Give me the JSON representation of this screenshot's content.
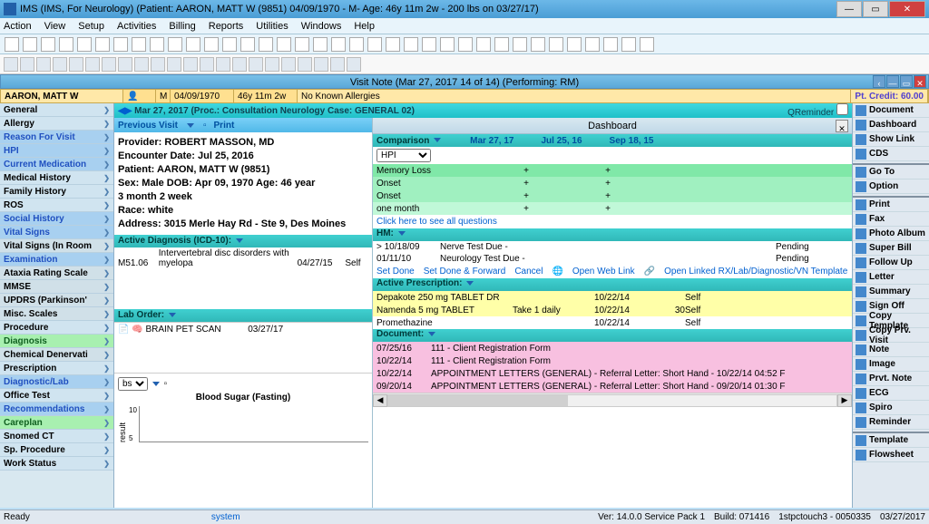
{
  "titlebar": {
    "text": "IMS (IMS, For Neurology)    (Patient: AARON, MATT W (9851) 04/09/1970 - M- Age: 46y 11m 2w - 200 lbs on 03/27/17)"
  },
  "menu": [
    "Action",
    "View",
    "Setup",
    "Activities",
    "Billing",
    "Reports",
    "Utilities",
    "Windows",
    "Help"
  ],
  "visit_header": "Visit Note (Mar 27, 2017   14 of 14) (Performing: RM)",
  "patient_bar": {
    "name": "AARON, MATT W",
    "sex": "M",
    "dob": "04/09/1970",
    "age": "46y 11m 2w",
    "allergy": "No Known Allergies",
    "credit": "Pt. Credit: 60.00"
  },
  "nav": [
    {
      "label": "General",
      "cls": "nav-normal"
    },
    {
      "label": "Allergy",
      "cls": "nav-normal"
    },
    {
      "label": "Reason For Visit",
      "cls": "nav-blue"
    },
    {
      "label": "HPI",
      "cls": "nav-blue"
    },
    {
      "label": "Current Medication",
      "cls": "nav-blue"
    },
    {
      "label": "Medical History",
      "cls": "nav-normal"
    },
    {
      "label": "Family History",
      "cls": "nav-normal"
    },
    {
      "label": "ROS",
      "cls": "nav-normal"
    },
    {
      "label": "Social History",
      "cls": "nav-blue"
    },
    {
      "label": "Vital Signs",
      "cls": "nav-blue"
    },
    {
      "label": "Vital Signs (In Room",
      "cls": "nav-bold-mid"
    },
    {
      "label": "Examination",
      "cls": "nav-blue"
    },
    {
      "label": "Ataxia Rating Scale",
      "cls": "nav-bold-mid"
    },
    {
      "label": "MMSE",
      "cls": "nav-bold-mid"
    },
    {
      "label": "UPDRS (Parkinson'",
      "cls": "nav-bold-mid"
    },
    {
      "label": "Misc. Scales",
      "cls": "nav-bold-mid"
    },
    {
      "label": "Procedure",
      "cls": "nav-normal"
    },
    {
      "label": "Diagnosis",
      "cls": "nav-green"
    },
    {
      "label": "Chemical Denervati",
      "cls": "nav-bold-mid"
    },
    {
      "label": "Prescription",
      "cls": "nav-normal"
    },
    {
      "label": "Diagnostic/Lab",
      "cls": "nav-blue"
    },
    {
      "label": "Office Test",
      "cls": "nav-normal"
    },
    {
      "label": "Recommendations",
      "cls": "nav-blue"
    },
    {
      "label": "Careplan",
      "cls": "nav-green"
    },
    {
      "label": "Snomed CT",
      "cls": "nav-normal"
    },
    {
      "label": "Sp. Procedure",
      "cls": "nav-normal"
    },
    {
      "label": "Work Status",
      "cls": "nav-normal"
    }
  ],
  "proc_bar": {
    "text": "Mar 27, 2017  (Proc.: Consultation Neurology  Case: GENERAL 02)",
    "qreminder": "QReminder"
  },
  "previous_visit": {
    "pv": "Previous Visit",
    "print": "Print"
  },
  "patient_info": {
    "l1": "Provider: ROBERT MASSON, MD",
    "l2": "Encounter Date: Jul 25, 2016",
    "l3": "Patient: AARON, MATT W  (9851)",
    "l4": "Sex: Male    DOB: Apr 09, 1970    Age: 46 year",
    "l5": "3 month 2 week",
    "l6": "Race: white",
    "l7": "Address: 3015 Merle Hay Rd - Ste 9,  Des Moines"
  },
  "active_diag_hdr": "Active Diagnosis (ICD-10):",
  "diag_row": {
    "code": "M51.06",
    "desc": "Intervertebral disc disorders with myelopa",
    "date": "04/27/15",
    "src": "Self"
  },
  "lab_hdr": "Lab Order:",
  "lab_row": {
    "name": "BRAIN PET SCAN",
    "date": "03/27/17"
  },
  "bs": {
    "sel": "bs",
    "title": "Blood Sugar (Fasting)",
    "y": "result",
    "tick": "10"
  },
  "dashboard": "Dashboard",
  "comparison": {
    "hdr": "Comparison",
    "d1": "Mar 27, 17",
    "d2": "Jul 25, 16",
    "d3": "Sep 18, 15",
    "select": "HPI"
  },
  "comp_rows": [
    {
      "label": "Memory Loss",
      "v1": "+",
      "v2": "+",
      "cls": "comp-g1"
    },
    {
      "label": "Onset",
      "v1": "+",
      "v2": "+",
      "cls": "comp-g2"
    },
    {
      "label": "Onset",
      "v1": "+",
      "v2": "+",
      "cls": "comp-g2"
    },
    {
      "label": "one month",
      "v1": "+",
      "v2": "+",
      "cls": "comp-g3"
    }
  ],
  "see_all": "Click here to see all questions",
  "hm_hdr": "HM:",
  "hm_rows": [
    {
      "date": "> 10/18/09",
      "desc": "Nerve Test Due   -",
      "status": "Pending"
    },
    {
      "date": "01/11/10",
      "desc": "Neurology Test Due   -",
      "status": "Pending"
    }
  ],
  "links": {
    "setdone": "Set Done",
    "setfwd": "Set Done & Forward",
    "cancel": "Cancel",
    "openweb": "Open Web Link",
    "openlinked": "Open Linked RX/Lab/Diagnostic/VN Template"
  },
  "rx_hdr": "Active Prescription:",
  "rx_rows": [
    {
      "drug": "Depakote 250 mg TABLET DR",
      "sig": "",
      "date": "10/22/14",
      "qty": "",
      "src": "Self",
      "cls": "rx-y"
    },
    {
      "drug": "Namenda 5 mg TABLET",
      "sig": "Take 1 daily",
      "date": "10/22/14",
      "qty": "30",
      "src": "Self",
      "cls": "rx-y"
    },
    {
      "drug": "Promethazine",
      "sig": "",
      "date": "10/22/14",
      "qty": "",
      "src": "Self",
      "cls": ""
    }
  ],
  "doc_hdr": "Document:",
  "doc_rows": [
    {
      "date": "07/25/16",
      "desc": "111 - Client Registration Form",
      "cls": "doc-p"
    },
    {
      "date": "10/22/14",
      "desc": "111 - Client Registration Form",
      "cls": "doc-p"
    },
    {
      "date": "10/22/14",
      "desc": "APPOINTMENT LETTERS (GENERAL)  - Referral Letter: Short Hand - 10/22/14 04:52 F",
      "cls": "doc-p"
    },
    {
      "date": "09/20/14",
      "desc": "APPOINTMENT LETTERS (GENERAL)  - Referral Letter: Short Hand - 09/20/14 01:30 F",
      "cls": "doc-p"
    }
  ],
  "right_panel": [
    "Document",
    "Dashboard",
    "Show Link",
    "CDS",
    "Go To",
    "Option",
    "Print",
    "Fax",
    "Photo Album",
    "Super Bill",
    "Follow Up",
    "Letter",
    "Summary",
    "Sign Off",
    "Copy Template",
    "Copy Prv. Visit",
    "Note",
    "Image",
    "Prvt. Note",
    "ECG",
    "Spiro",
    "Reminder",
    "Template",
    "Flowsheet"
  ],
  "status": {
    "ready": "Ready",
    "system": "system",
    "ver": "Ver: 14.0.0 Service Pack 1",
    "build": "Build: 071416",
    "conn": "1stpctouch3 - 0050335",
    "date": "03/27/2017"
  }
}
